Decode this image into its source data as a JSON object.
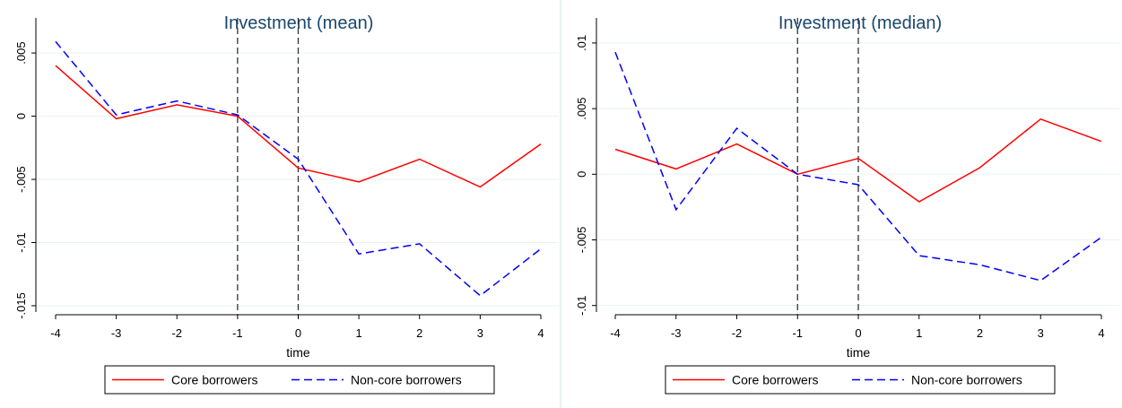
{
  "chart_data": [
    {
      "type": "line",
      "title": "Investment (mean)",
      "xlabel": "time",
      "ylabel": "",
      "x": [
        -4,
        -3,
        -2,
        -1,
        0,
        1,
        2,
        3,
        4
      ],
      "xticks": [
        "-4",
        "-3",
        "-2",
        "-1",
        "0",
        "1",
        "2",
        "3",
        "4"
      ],
      "yticks": [
        {
          "value": 0.005,
          "label": ".005"
        },
        {
          "value": 0,
          "label": "0"
        },
        {
          "value": -0.005,
          "label": "-.005"
        },
        {
          "value": -0.01,
          "label": "-.01"
        },
        {
          "value": -0.015,
          "label": "-.015"
        }
      ],
      "ylim": [
        -0.0155,
        0.006
      ],
      "vlines": [
        -1,
        0
      ],
      "grid": true,
      "legend": "bottom",
      "series": [
        {
          "name": "Core borrowers",
          "color": "#ff0000",
          "style": "solid",
          "values": [
            0.004,
            -0.0002,
            0.0009,
            0.0,
            -0.0041,
            -0.0052,
            -0.0034,
            -0.0056,
            -0.0022
          ]
        },
        {
          "name": "Non-core borrowers",
          "color": "#0000ff",
          "style": "dashed",
          "values": [
            0.0059,
            0.0001,
            0.0012,
            0.0001,
            -0.0034,
            -0.0109,
            -0.0101,
            -0.0142,
            -0.0105
          ]
        }
      ]
    },
    {
      "type": "line",
      "title": "Investment (median)",
      "xlabel": "time",
      "ylabel": "",
      "x": [
        -4,
        -3,
        -2,
        -1,
        0,
        1,
        2,
        3,
        4
      ],
      "xticks": [
        "-4",
        "-3",
        "-2",
        "-1",
        "0",
        "1",
        "2",
        "3",
        "4"
      ],
      "yticks": [
        {
          "value": 0.01,
          "label": ".01"
        },
        {
          "value": 0.005,
          "label": ".005"
        },
        {
          "value": 0,
          "label": "0"
        },
        {
          "value": -0.005,
          "label": "-.005"
        },
        {
          "value": -0.01,
          "label": "-.01"
        }
      ],
      "ylim": [
        -0.0105,
        0.0102
      ],
      "vlines": [
        -1,
        0
      ],
      "grid": true,
      "legend": "bottom",
      "series": [
        {
          "name": "Core borrowers",
          "color": "#ff0000",
          "style": "solid",
          "values": [
            0.0019,
            0.0004,
            0.0023,
            0.0,
            0.0012,
            -0.0021,
            0.0005,
            0.0042,
            0.0025
          ]
        },
        {
          "name": "Non-core borrowers",
          "color": "#0000ff",
          "style": "dashed",
          "values": [
            0.0093,
            -0.0027,
            0.0035,
            0.0,
            -0.0008,
            -0.0062,
            -0.0069,
            -0.0081,
            -0.0048
          ]
        }
      ]
    }
  ]
}
